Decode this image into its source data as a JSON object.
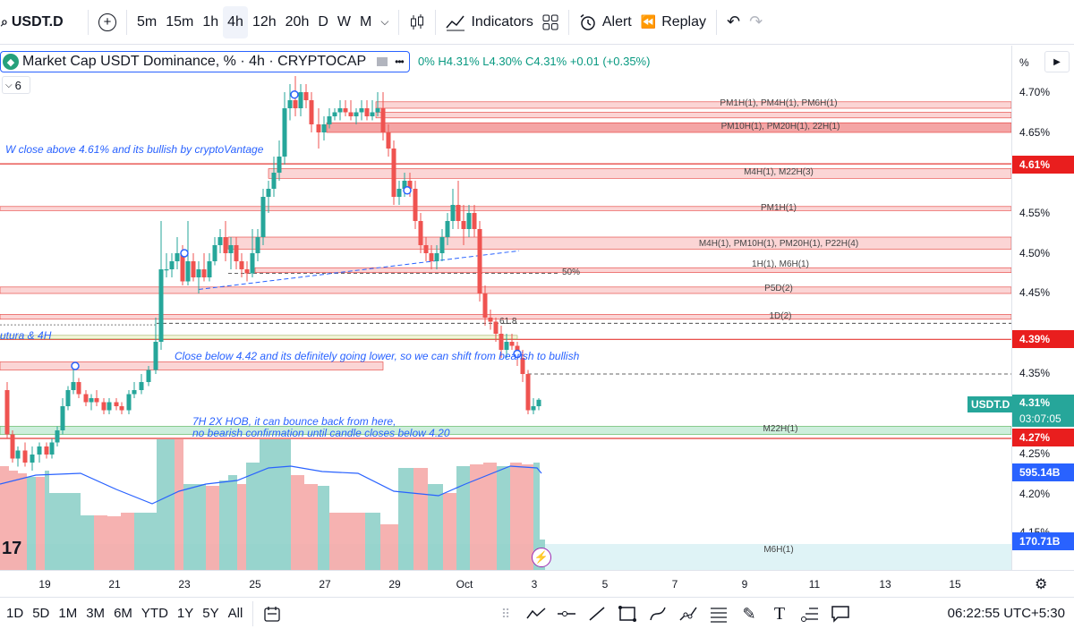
{
  "toolbar": {
    "symbol": "USDT.D",
    "add_symbol_icon": "plus-circle-icon",
    "intervals": [
      "5m",
      "15m",
      "1h",
      "4h",
      "12h",
      "20h",
      "D",
      "W",
      "M"
    ],
    "active_interval": "4h",
    "indicators_label": "Indicators",
    "alert_label": "Alert",
    "replay_label": "Replay"
  },
  "legend": {
    "title": "Market Cap USDT Dominance, % · 4h · CRYPTOCAP",
    "ohlc": "0% H4.31% L4.30% C4.31% +0.01 (+0.35%)",
    "collapse_value": "6"
  },
  "levels": [
    {
      "label": "PM1H(1), PM4H(1), PM6H(1)",
      "price": 4.684
    },
    {
      "label": "PM10H(1), PM20H(1), 22H(1)",
      "price": 4.656
    },
    {
      "label": "M4H(1), M22H(3)",
      "price": 4.599
    },
    {
      "label": "PM1H(1)",
      "price": 4.555
    },
    {
      "label": "M4H(1), PM10H(1), PM20H(1), P22H(4)",
      "price": 4.51
    },
    {
      "label": "1H(1), M6H(1)",
      "price": 4.484
    },
    {
      "label": "P5D(2)",
      "price": 4.454
    },
    {
      "label": "1D(2)",
      "price": 4.42
    },
    {
      "label": "M22H(1)",
      "price": 4.28
    },
    {
      "label": "M6H(1)",
      "price": 4.13
    }
  ],
  "fib": [
    {
      "label": "50%",
      "price": 4.475
    },
    {
      "label": "61.8",
      "price": 4.413
    }
  ],
  "notes": {
    "note1": "W close above 4.61% and its bullish by cryptoVantage",
    "note2": "Close below 4.42 and its definitely going lower, so we can shift from bearish to bullish",
    "note3a": "7H 2X HOB, it can bounce back from here,",
    "note3b": "no bearish confirmation until candle closes below 4.20",
    "note4": "utura & 4H"
  },
  "yaxis": {
    "unit": "%",
    "ticks": [
      "4.70%",
      "4.65%",
      "4.60%",
      "4.55%",
      "4.50%",
      "4.45%",
      "4.40%",
      "4.35%",
      "4.25%",
      "4.20%",
      "4.15%"
    ],
    "tags": [
      {
        "text": "4.61%",
        "color": "#e91e1e"
      },
      {
        "text": "4.39%",
        "color": "#e91e1e"
      },
      {
        "text": "4.27%",
        "color": "#e91e1e"
      },
      {
        "text": "595.14B",
        "color": "#2962ff"
      },
      {
        "text": "170.71B",
        "color": "#2962ff"
      }
    ],
    "current_symbol": "USDT.D",
    "current_price": "4.31%",
    "countdown": "03:07:05"
  },
  "xaxis": {
    "ticks": [
      "19",
      "21",
      "23",
      "25",
      "27",
      "29",
      "Oct",
      "3",
      "5",
      "7",
      "9",
      "11",
      "13",
      "15"
    ]
  },
  "bottom": {
    "ranges": [
      "1D",
      "5D",
      "1M",
      "3M",
      "6M",
      "YTD",
      "1Y",
      "5Y",
      "All"
    ],
    "time": "06:22:55 UTC+5:30"
  },
  "colors": {
    "up": "#26a69a",
    "down": "#ef5350",
    "zone": "#f7c6c6",
    "zone_border": "#e53935",
    "accent": "#2962ff"
  }
}
